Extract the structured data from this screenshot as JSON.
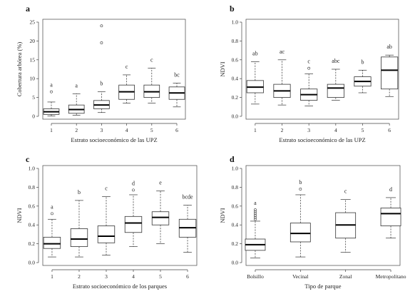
{
  "chart_data": [
    {
      "type": "box",
      "panel": "a",
      "xlabel": "Estrato socioeconómico de las UPZ",
      "ylabel": "Cobertura arbórea (%)",
      "ylim": [
        0,
        25
      ],
      "yticks": [
        0,
        5,
        10,
        15,
        20,
        25
      ],
      "categories": [
        "1",
        "2",
        "3",
        "4",
        "5",
        "6"
      ],
      "boxes": [
        {
          "min": 0.1,
          "q1": 0.5,
          "median": 1.2,
          "q3": 2.0,
          "max": 3.8,
          "outliers": [
            6.5
          ],
          "sig": "a"
        },
        {
          "min": 0.3,
          "q1": 0.8,
          "median": 1.8,
          "q3": 3.0,
          "max": 6.0,
          "outliers": [],
          "sig": "a"
        },
        {
          "min": 1.0,
          "q1": 2.0,
          "median": 3.0,
          "q3": 4.2,
          "max": 6.5,
          "outliers": [
            19.5,
            24.0
          ],
          "sig": "b"
        },
        {
          "min": 3.5,
          "q1": 4.5,
          "median": 6.5,
          "q3": 8.3,
          "max": 11.0,
          "outliers": [],
          "sig": "c"
        },
        {
          "min": 3.5,
          "q1": 5.0,
          "median": 6.5,
          "q3": 8.3,
          "max": 12.8,
          "outliers": [],
          "sig": "c"
        },
        {
          "min": 2.5,
          "q1": 4.5,
          "median": 6.2,
          "q3": 7.8,
          "max": 8.8,
          "outliers": [],
          "sig": "bc"
        }
      ]
    },
    {
      "type": "box",
      "panel": "b",
      "xlabel": "Estrato socioeconómico de las UPZ",
      "ylabel": "NDVI",
      "ylim": [
        0,
        1.0
      ],
      "yticks": [
        "0.0",
        "0.2",
        "0.4",
        "0.6",
        "0.8",
        "1.0"
      ],
      "categories": [
        "1",
        "2",
        "3",
        "4",
        "5",
        "6"
      ],
      "boxes": [
        {
          "min": 0.13,
          "q1": 0.25,
          "median": 0.31,
          "q3": 0.38,
          "max": 0.58,
          "outliers": [],
          "sig": "ab"
        },
        {
          "min": 0.12,
          "q1": 0.2,
          "median": 0.27,
          "q3": 0.34,
          "max": 0.6,
          "outliers": [],
          "sig": "ac"
        },
        {
          "min": 0.11,
          "q1": 0.17,
          "median": 0.23,
          "q3": 0.29,
          "max": 0.45,
          "outliers": [
            0.51
          ],
          "sig": "c"
        },
        {
          "min": 0.17,
          "q1": 0.2,
          "median": 0.3,
          "q3": 0.34,
          "max": 0.5,
          "outliers": [],
          "sig": "abc"
        },
        {
          "min": 0.25,
          "q1": 0.32,
          "median": 0.37,
          "q3": 0.42,
          "max": 0.49,
          "outliers": [],
          "sig": "b"
        },
        {
          "min": 0.21,
          "q1": 0.29,
          "median": 0.49,
          "q3": 0.63,
          "max": 0.65,
          "outliers": [],
          "sig": "ab"
        }
      ]
    },
    {
      "type": "box",
      "panel": "c",
      "xlabel": "Estrato socioeconómico de los parques",
      "ylabel": "NDVI",
      "ylim": [
        0,
        1.0
      ],
      "yticks": [
        "0.0",
        "0.2",
        "0.4",
        "0.6",
        "0.8",
        "1.0"
      ],
      "categories": [
        "1",
        "2",
        "3",
        "4",
        "5",
        "6"
      ],
      "boxes": [
        {
          "min": 0.06,
          "q1": 0.15,
          "median": 0.2,
          "q3": 0.27,
          "max": 0.46,
          "outliers": [
            0.52
          ],
          "sig": "a"
        },
        {
          "min": 0.06,
          "q1": 0.17,
          "median": 0.25,
          "q3": 0.36,
          "max": 0.66,
          "outliers": [],
          "sig": "b"
        },
        {
          "min": 0.08,
          "q1": 0.21,
          "median": 0.28,
          "q3": 0.39,
          "max": 0.7,
          "outliers": [],
          "sig": "c"
        },
        {
          "min": 0.17,
          "q1": 0.32,
          "median": 0.42,
          "q3": 0.49,
          "max": 0.72,
          "outliers": [
            0.77
          ],
          "sig": "d"
        },
        {
          "min": 0.2,
          "q1": 0.4,
          "median": 0.48,
          "q3": 0.54,
          "max": 0.76,
          "outliers": [],
          "sig": "e"
        },
        {
          "min": 0.11,
          "q1": 0.27,
          "median": 0.37,
          "q3": 0.46,
          "max": 0.61,
          "outliers": [],
          "sig": "bcde"
        }
      ]
    },
    {
      "type": "box",
      "panel": "d",
      "xlabel": "Tipo de parque",
      "ylabel": "NDVI",
      "ylim": [
        0,
        1.0
      ],
      "yticks": [
        "0.0",
        "0.2",
        "0.4",
        "0.6",
        "0.8",
        "1.0"
      ],
      "categories": [
        "Bolsillo",
        "Vecinal",
        "Zonal",
        "Metropolitano"
      ],
      "boxes": [
        {
          "min": 0.05,
          "q1": 0.13,
          "median": 0.19,
          "q3": 0.25,
          "max": 0.44,
          "outliers": [
            0.46,
            0.48,
            0.5,
            0.52,
            0.54,
            0.56
          ],
          "sig": "a"
        },
        {
          "min": 0.06,
          "q1": 0.22,
          "median": 0.31,
          "q3": 0.42,
          "max": 0.72,
          "outliers": [
            0.78
          ],
          "sig": "b"
        },
        {
          "min": 0.11,
          "q1": 0.26,
          "median": 0.4,
          "q3": 0.53,
          "max": 0.67,
          "outliers": [],
          "sig": "c"
        },
        {
          "min": 0.26,
          "q1": 0.39,
          "median": 0.52,
          "q3": 0.58,
          "max": 0.69,
          "outliers": [],
          "sig": "d"
        }
      ]
    }
  ]
}
